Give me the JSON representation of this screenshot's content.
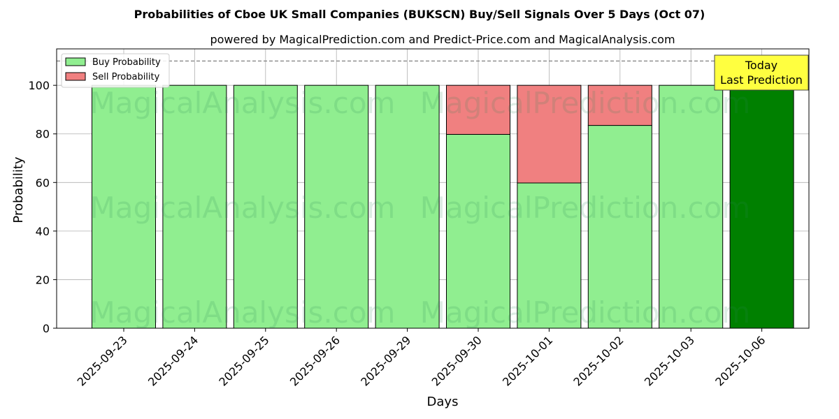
{
  "chart_data": {
    "type": "bar",
    "title": "Probabilities of Cboe UK Small Companies (BUKSCN) Buy/Sell Signals Over 5 Days (Oct 07)",
    "subtitle": "powered by MagicalPrediction.com and Predict-Price.com and MagicalAnalysis.com",
    "xlabel": "Days",
    "ylabel": "Probability",
    "ylim": [
      0,
      115
    ],
    "yticks": [
      0,
      20,
      40,
      60,
      80,
      100
    ],
    "grid": true,
    "legend_position": "top-left",
    "reference_line": 110,
    "categories": [
      "2025-09-23",
      "2025-09-24",
      "2025-09-25",
      "2025-09-26",
      "2025-09-29",
      "2025-09-30",
      "2025-10-01",
      "2025-10-02",
      "2025-10-03",
      "2025-10-06"
    ],
    "series": [
      {
        "name": "Buy Probability",
        "color": "#90ee90",
        "values": [
          100,
          100,
          100,
          100,
          100,
          79.8,
          59.8,
          83.5,
          100,
          100
        ]
      },
      {
        "name": "Sell Probability",
        "color": "#f08080",
        "values": [
          0,
          0,
          0,
          0,
          0,
          20.2,
          40.2,
          16.5,
          0,
          0
        ]
      }
    ],
    "highlight_color": "#008000",
    "annotation": {
      "lines": [
        "Today",
        "Last Prediction"
      ],
      "color": "#ffff40"
    },
    "watermarks": [
      "MagicalAnalysis.com",
      "MagicalPrediction.com",
      "MagicalAnalysis.com",
      "MagicalPrediction.com",
      "MagicalAnalysis.com",
      "MagicalPrediction.com"
    ]
  }
}
